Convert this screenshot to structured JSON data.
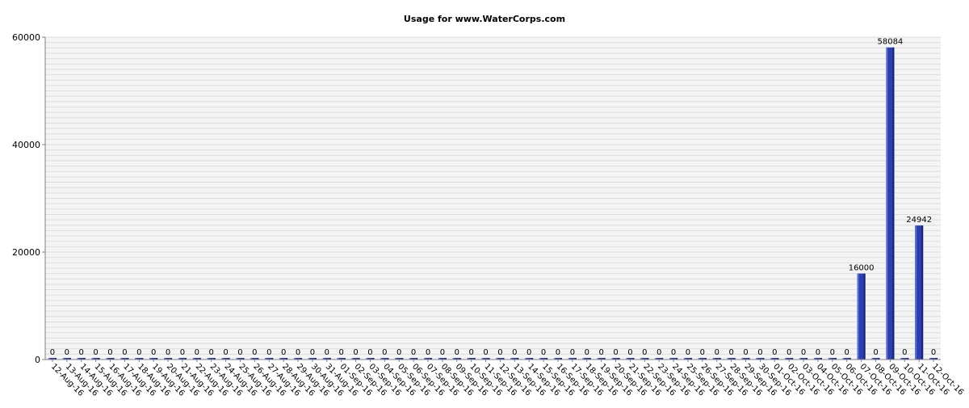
{
  "chart_data": {
    "type": "bar",
    "title": "Usage for www.WaterCorps.com",
    "xlabel": "",
    "ylabel": "",
    "ylim": [
      0,
      60000
    ],
    "yticks": [
      0,
      20000,
      40000,
      60000
    ],
    "grid": true,
    "legend": "none",
    "categories": [
      "12-Aug-16",
      "13-Aug-16",
      "14-Aug-16",
      "15-Aug-16",
      "16-Aug-16",
      "17-Aug-16",
      "18-Aug-16",
      "19-Aug-16",
      "20-Aug-16",
      "21-Aug-16",
      "22-Aug-16",
      "23-Aug-16",
      "24-Aug-16",
      "25-Aug-16",
      "26-Aug-16",
      "27-Aug-16",
      "28-Aug-16",
      "29-Aug-16",
      "30-Aug-16",
      "31-Aug-16",
      "01-Sep-16",
      "02-Sep-16",
      "03-Sep-16",
      "04-Sep-16",
      "05-Sep-16",
      "06-Sep-16",
      "07-Sep-16",
      "08-Sep-16",
      "09-Sep-16",
      "10-Sep-16",
      "11-Sep-16",
      "12-Sep-16",
      "13-Sep-16",
      "14-Sep-16",
      "15-Sep-16",
      "16-Sep-16",
      "17-Sep-16",
      "18-Sep-16",
      "19-Sep-16",
      "20-Sep-16",
      "21-Sep-16",
      "22-Sep-16",
      "23-Sep-16",
      "24-Sep-16",
      "25-Sep-16",
      "26-Sep-16",
      "27-Sep-16",
      "28-Sep-16",
      "29-Sep-16",
      "30-Sep-16",
      "01-Oct-16",
      "02-Oct-16",
      "03-Oct-16",
      "04-Oct-16",
      "05-Oct-16",
      "06-Oct-16",
      "07-Oct-16",
      "08-Oct-16",
      "09-Oct-16",
      "10-Oct-16",
      "11-Oct-16",
      "12-Oct-16"
    ],
    "values": [
      0,
      0,
      0,
      0,
      0,
      0,
      0,
      0,
      0,
      0,
      0,
      0,
      0,
      0,
      0,
      0,
      0,
      0,
      0,
      0,
      0,
      0,
      0,
      0,
      0,
      0,
      0,
      0,
      0,
      0,
      0,
      0,
      0,
      0,
      0,
      0,
      0,
      0,
      0,
      0,
      0,
      0,
      0,
      0,
      0,
      0,
      0,
      0,
      0,
      0,
      0,
      0,
      0,
      0,
      0,
      0,
      16000,
      0,
      58084,
      0,
      24942,
      0
    ],
    "colors": {
      "bar": "#2a3fb0",
      "bar_dark": "#15227a",
      "bar_light": "#5a6fd8",
      "grid": "#dcdcdc",
      "plot_bg": "#f4f4f4"
    }
  }
}
